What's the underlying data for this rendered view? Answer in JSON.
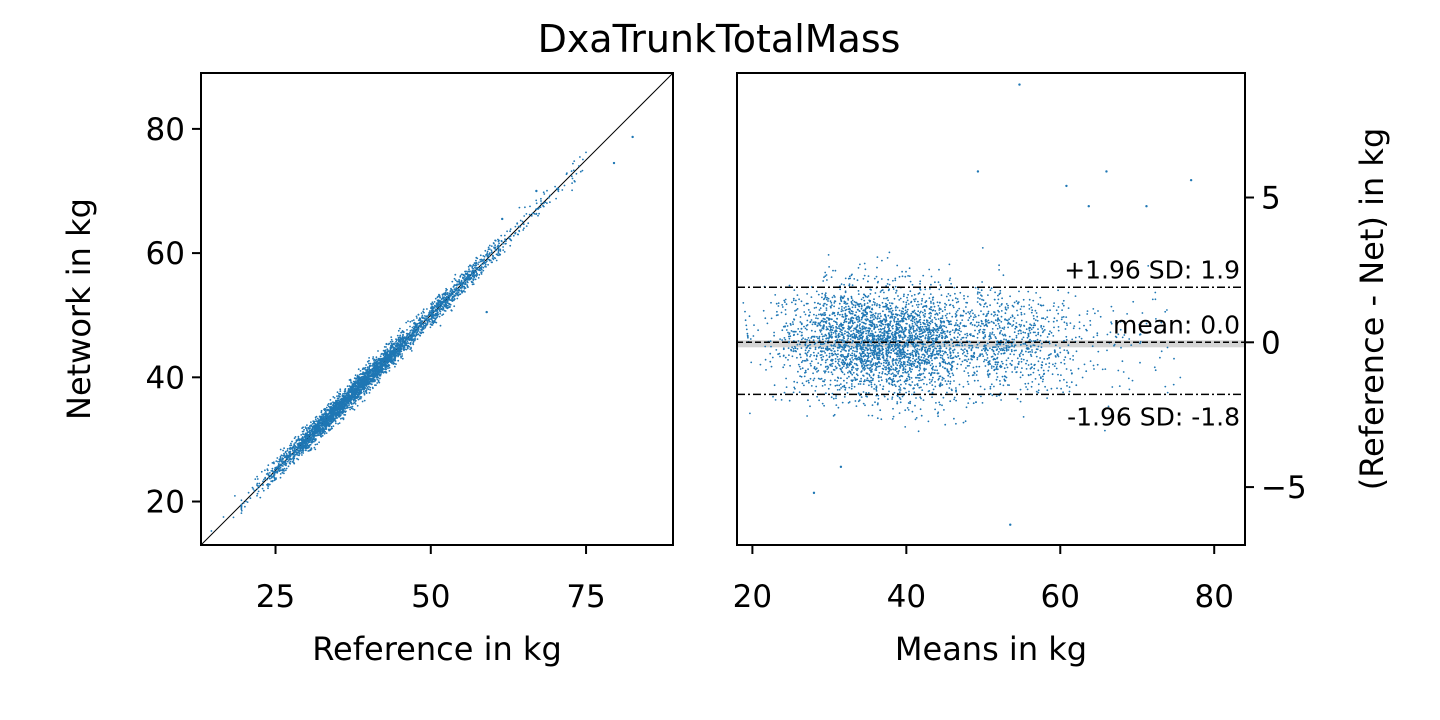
{
  "chart_data": {
    "title": "DxaTrunkTotalMass",
    "accent_color": "#1f77b4",
    "panels": [
      {
        "type": "scatter",
        "xlabel": "Reference in kg",
        "ylabel": "Network in kg",
        "xlim": [
          13,
          89
        ],
        "ylim": [
          13,
          89
        ],
        "xticks": [
          25,
          50,
          75
        ],
        "yticks": [
          20,
          40,
          60,
          80
        ],
        "identity_line": true,
        "grid": false,
        "n_points": 4000,
        "point_summary": {
          "x_range": [
            19,
            83
          ],
          "dense_range": [
            22,
            50
          ],
          "relation": "network ≈ reference",
          "spread_sd": 0.95
        },
        "notable_points": [
          {
            "x": 82.5,
            "y": 78.7
          },
          {
            "x": 79.5,
            "y": 74.5
          },
          {
            "x": 59.0,
            "y": 50.5
          },
          {
            "x": 61.5,
            "y": 65.5
          },
          {
            "x": 67.0,
            "y": 70.0
          }
        ]
      },
      {
        "type": "scatter",
        "xlabel": "Means in kg",
        "ylabel": "(Reference - Net) in kg",
        "y_axis_side": "right",
        "xlim": [
          18,
          84
        ],
        "ylim": [
          -7,
          9.3
        ],
        "xticks": [
          20,
          40,
          60,
          80
        ],
        "ytick_values": [
          -5,
          0,
          5
        ],
        "ytick_labels": [
          "−5",
          "0",
          "5"
        ],
        "grid": false,
        "n_points": 4000,
        "mean": 0.0,
        "upper_loa": 1.9,
        "lower_loa": -1.8,
        "annotations": {
          "upper": "+1.96 SD: 1.9",
          "mean": "mean: 0.0",
          "lower": "-1.96 SD: -1.8"
        },
        "notable_points": [
          {
            "x": 54.7,
            "y": 8.9
          },
          {
            "x": 77.0,
            "y": 5.6
          },
          {
            "x": 66.0,
            "y": 5.9
          },
          {
            "x": 49.3,
            "y": 5.9
          },
          {
            "x": 60.8,
            "y": 5.4
          },
          {
            "x": 53.5,
            "y": -6.3
          },
          {
            "x": 28.0,
            "y": -5.2
          },
          {
            "x": 31.5,
            "y": -4.3
          },
          {
            "x": 71.2,
            "y": 4.7
          },
          {
            "x": 63.7,
            "y": 4.7
          }
        ]
      }
    ]
  }
}
